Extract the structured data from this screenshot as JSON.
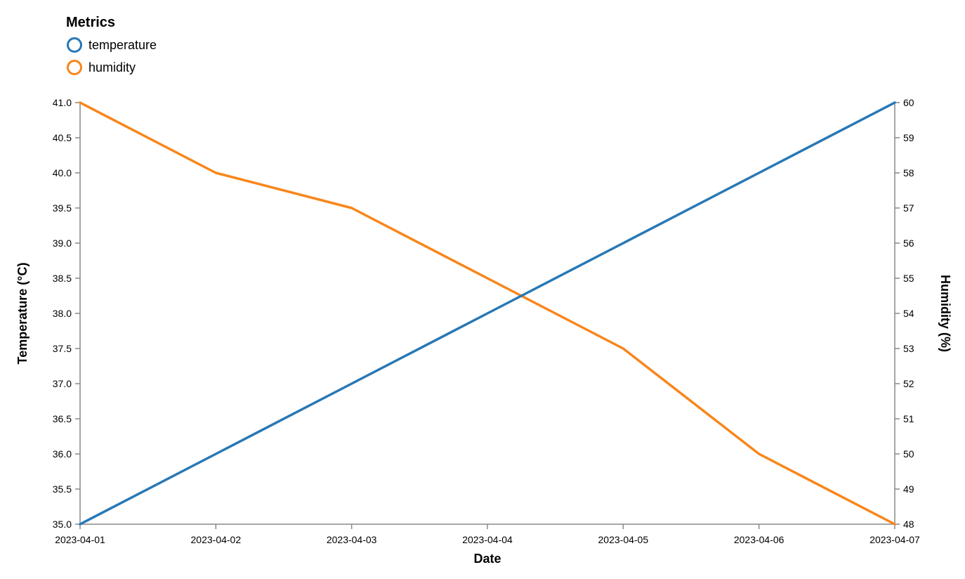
{
  "chart_data": {
    "type": "line",
    "legend": {
      "title": "Metrics",
      "placement": "top-left"
    },
    "x": [
      "2023-04-01",
      "2023-04-02",
      "2023-04-03",
      "2023-04-04",
      "2023-04-05",
      "2023-04-06",
      "2023-04-07"
    ],
    "x_tick_labels": [
      "2023-04-01",
      "2023-04-02",
      "2023-04-03",
      "2023-04-04",
      "2023-04-05",
      "2023-04-06",
      "2023-04-07"
    ],
    "xlabel": "Date",
    "y_left": {
      "label": "Temperature (°C)",
      "range": [
        35,
        41
      ],
      "ticks": [
        "35.0",
        "35.5",
        "36.0",
        "36.5",
        "37.0",
        "37.5",
        "38.0",
        "38.5",
        "39.0",
        "39.5",
        "40.0",
        "40.5",
        "41.0"
      ]
    },
    "y_right": {
      "label": "Humidity (%)",
      "range": [
        48,
        60
      ],
      "ticks": [
        "48",
        "49",
        "50",
        "51",
        "52",
        "53",
        "54",
        "55",
        "56",
        "57",
        "58",
        "59",
        "60"
      ]
    },
    "grid": false,
    "series": [
      {
        "name": "temperature",
        "axis": "left",
        "color": "#2878b5",
        "values": [
          35,
          36,
          37,
          38,
          39,
          40,
          41
        ]
      },
      {
        "name": "humidity",
        "axis": "right",
        "color": "#f8861b",
        "values": [
          60,
          58,
          57,
          55,
          53,
          50,
          48
        ]
      }
    ]
  }
}
